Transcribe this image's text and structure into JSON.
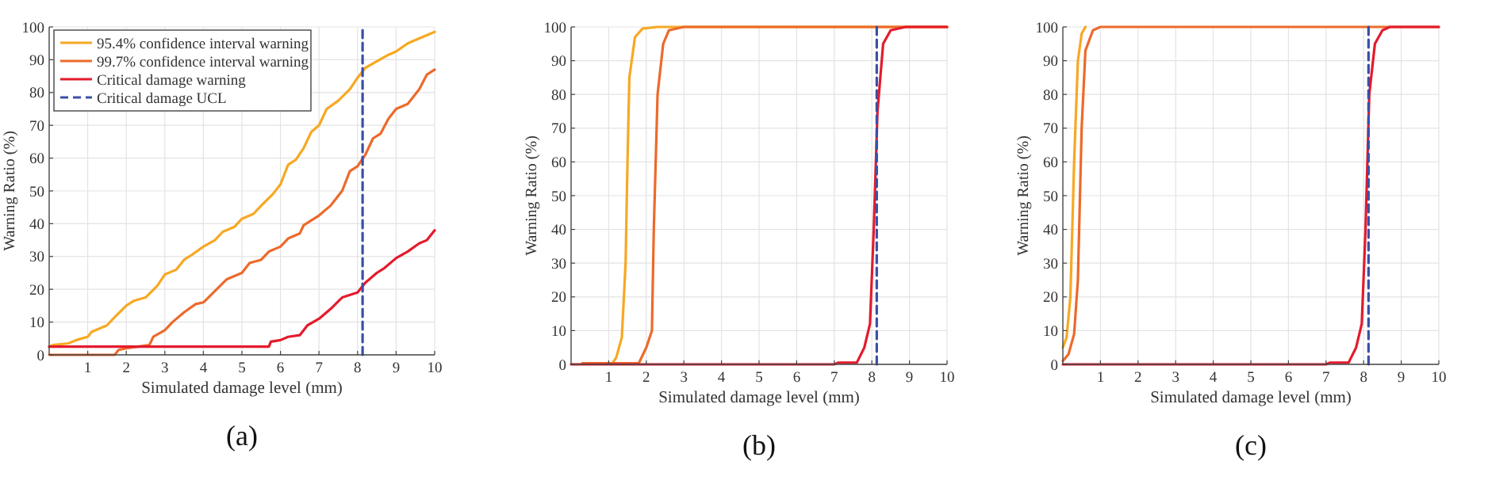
{
  "chart_data": [
    {
      "type": "line",
      "xlabel": "Simulated damage level (mm)",
      "ylabel": "Warning Ratio (%)",
      "annotations": [
        "(a)"
      ],
      "xlim": [
        0,
        10
      ],
      "ylim": [
        0,
        100
      ],
      "xticks": [
        1,
        2,
        3,
        4,
        5,
        6,
        7,
        8,
        9,
        10
      ],
      "yticks": [
        0,
        10,
        20,
        30,
        40,
        50,
        60,
        70,
        80,
        90,
        100
      ],
      "grid": true,
      "legend": "top left",
      "line_style": "solid",
      "marker": "none",
      "series": [
        {
          "name": "95.4% confidence interval warning",
          "color": "#f7a823",
          "x": [
            0,
            0.1,
            0.5,
            0.7,
            1,
            1.1,
            1.5,
            1.7,
            2,
            2.2,
            2.5,
            2.8,
            3,
            3.3,
            3.5,
            3.7,
            4,
            4.3,
            4.5,
            4.8,
            5,
            5.3,
            5.5,
            5.8,
            6,
            6.2,
            6.4,
            6.6,
            6.8,
            7,
            7.2,
            7.5,
            7.8,
            8,
            8.2,
            8.5,
            8.8,
            9,
            9.3,
            9.6,
            10
          ],
          "values": [
            2.5,
            3,
            3.5,
            4.5,
            5.5,
            7,
            9,
            11.5,
            15,
            16.5,
            17.5,
            21,
            24.5,
            26,
            29,
            30.5,
            33,
            35,
            37.5,
            39,
            41.5,
            43,
            45.5,
            49,
            52,
            58,
            59.5,
            63,
            68,
            70,
            75,
            77.5,
            81,
            84.5,
            87.5,
            89.5,
            91.5,
            92.5,
            95,
            96.5,
            98.5
          ]
        },
        {
          "name": "99.7% confidence interval warning",
          "color": "#ec6a2b",
          "x": [
            0,
            1.7,
            1.8,
            2,
            2.3,
            2.6,
            2.7,
            3,
            3.2,
            3.5,
            3.8,
            4,
            4.3,
            4.6,
            5,
            5.2,
            5.5,
            5.7,
            6,
            6.2,
            6.5,
            6.6,
            7,
            7.3,
            7.6,
            7.8,
            8,
            8.2,
            8.4,
            8.6,
            8.8,
            9,
            9.3,
            9.6,
            9.8,
            10
          ],
          "values": [
            0,
            0,
            1.5,
            2,
            2.5,
            3,
            5.5,
            7.5,
            10,
            13,
            15.5,
            16,
            19.5,
            23,
            25,
            28,
            29,
            31.5,
            33,
            35.5,
            37,
            39.5,
            42.5,
            45.5,
            50,
            56,
            57.5,
            61,
            66,
            67.5,
            72,
            75,
            76.5,
            81,
            85.5,
            87
          ]
        },
        {
          "name": "Critical damage warning",
          "color": "#e31b2c",
          "x": [
            0,
            5.7,
            5.75,
            6,
            6.2,
            6.5,
            6.7,
            7,
            7.3,
            7.6,
            8,
            8.2,
            8.5,
            8.7,
            9,
            9.3,
            9.6,
            9.8,
            10
          ],
          "values": [
            2.5,
            2.5,
            4,
            4.5,
            5.5,
            6,
            9,
            11,
            14,
            17.5,
            19,
            22,
            25,
            26.5,
            29.5,
            31.5,
            34,
            35,
            38
          ]
        },
        {
          "name": "Critical damage UCL",
          "color": "#3a4fa8",
          "line_style": "dashed",
          "x": [
            8.13,
            8.13
          ],
          "values": [
            0,
            100
          ]
        }
      ]
    },
    {
      "type": "line",
      "xlabel": "Simulated damage level (mm)",
      "ylabel": "Warning Ratio (%)",
      "annotations": [
        "(b)"
      ],
      "xlim": [
        0,
        10
      ],
      "ylim": [
        0,
        100
      ],
      "xticks": [
        1,
        2,
        3,
        4,
        5,
        6,
        7,
        8,
        9,
        10
      ],
      "yticks": [
        0,
        10,
        20,
        30,
        40,
        50,
        60,
        70,
        80,
        90,
        100
      ],
      "grid": true,
      "line_style": "solid",
      "marker": "none",
      "series": [
        {
          "color": "#f7a823",
          "x": [
            0.3,
            1.1,
            1.2,
            1.35,
            1.45,
            1.5,
            1.55,
            1.7,
            1.9,
            2.3,
            10
          ],
          "values": [
            0.3,
            0.3,
            2,
            8,
            30,
            60,
            85,
            97,
            99.5,
            100,
            100
          ]
        },
        {
          "color": "#ec6a2b",
          "x": [
            0.3,
            1.8,
            2,
            2.15,
            2.2,
            2.3,
            2.45,
            2.6,
            3,
            10
          ],
          "values": [
            0.3,
            0.3,
            5,
            10,
            40,
            80,
            95,
            99,
            100,
            100
          ]
        },
        {
          "color": "#e31b2c",
          "x": [
            0,
            7,
            7.1,
            7.6,
            7.8,
            7.95,
            8.05,
            8.15,
            8.3,
            8.5,
            8.9,
            10
          ],
          "values": [
            0,
            0,
            0.5,
            0.5,
            5,
            12,
            40,
            75,
            95,
            99,
            100,
            100
          ]
        },
        {
          "color": "#3a4fa8",
          "line_style": "dashed",
          "x": [
            8.13,
            8.13
          ],
          "values": [
            0,
            100
          ]
        }
      ]
    },
    {
      "type": "line",
      "xlabel": "Simulated damage level (mm)",
      "ylabel": "Warning Ratio (%)",
      "annotations": [
        "(c)"
      ],
      "xlim": [
        0,
        10
      ],
      "ylim": [
        0,
        100
      ],
      "xticks": [
        1,
        2,
        3,
        4,
        5,
        6,
        7,
        8,
        9,
        10
      ],
      "yticks": [
        0,
        10,
        20,
        30,
        40,
        50,
        60,
        70,
        80,
        90,
        100
      ],
      "grid": true,
      "line_style": "solid",
      "marker": "none",
      "series": [
        {
          "color": "#f7a823",
          "x": [
            0,
            0.1,
            0.2,
            0.3,
            0.4,
            0.5,
            0.6
          ],
          "values": [
            5,
            8,
            20,
            60,
            90,
            98,
            100
          ]
        },
        {
          "color": "#ec6a2b",
          "x": [
            0,
            0.15,
            0.3,
            0.4,
            0.5,
            0.6,
            0.8,
            1,
            10
          ],
          "values": [
            1,
            3,
            9,
            25,
            70,
            93,
            99,
            100,
            100
          ]
        },
        {
          "color": "#e31b2c",
          "x": [
            0,
            7,
            7.1,
            7.6,
            7.8,
            7.95,
            8.05,
            8.15,
            8.3,
            8.5,
            8.7,
            10
          ],
          "values": [
            0,
            0,
            0.5,
            0.5,
            5,
            12,
            40,
            80,
            95,
            99,
            100,
            100
          ]
        },
        {
          "color": "#3a4fa8",
          "line_style": "dashed",
          "x": [
            8.13,
            8.13
          ],
          "values": [
            0,
            100
          ]
        }
      ]
    }
  ]
}
